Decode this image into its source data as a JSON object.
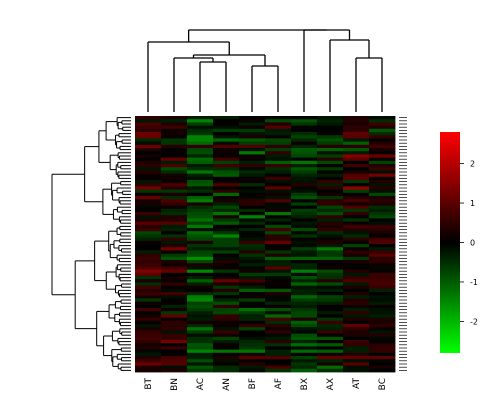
{
  "chart_data": {
    "type": "heatmap",
    "title": "",
    "columns": [
      "BT",
      "BN",
      "AC",
      "AN",
      "BF",
      "AF",
      "BX",
      "AX",
      "AT",
      "BC"
    ],
    "row_count": 80,
    "row_labels_visible": false,
    "value_range": [
      -2.8,
      2.8
    ],
    "colorbar": {
      "ticks": [
        -2,
        -1,
        0,
        1,
        2
      ],
      "tick_labels": [
        "-2",
        "-1",
        "0",
        "1",
        "2"
      ],
      "colors": {
        "low": "#00ff00",
        "mid": "#000000",
        "high": "#ff0000"
      }
    },
    "column_dendrogram": true,
    "row_dendrogram": true,
    "column_profiles": [
      {
        "column": "BT",
        "mean": 0.3
      },
      {
        "column": "BN",
        "mean": 0.2
      },
      {
        "column": "AC",
        "mean": -0.6
      },
      {
        "column": "AN",
        "mean": -0.2
      },
      {
        "column": "BF",
        "mean": -0.1
      },
      {
        "column": "AF",
        "mean": 0.0
      },
      {
        "column": "BX",
        "mean": -0.4
      },
      {
        "column": "AX",
        "mean": -0.1
      },
      {
        "column": "AT",
        "mean": 0.2
      },
      {
        "column": "BC",
        "mean": 0.2
      }
    ]
  }
}
